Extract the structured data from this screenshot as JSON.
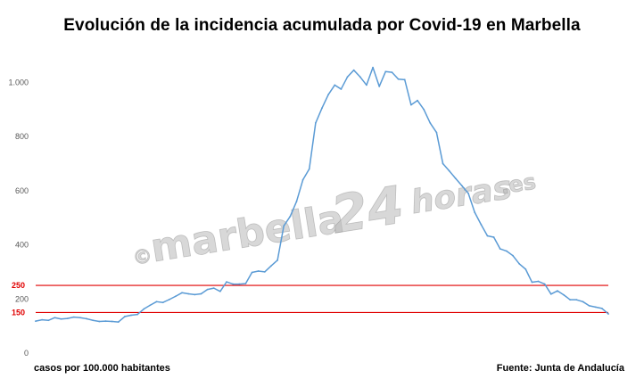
{
  "title": "Evolución de la incidencia acumulada por Covid-19 en Marbella",
  "footer": {
    "left": "casos por 100.000 habitantes",
    "right": "Fuente: Junta de Andalucía"
  },
  "watermark": {
    "copyright": "©",
    "brand": "marbella",
    "number": "24",
    "suffix": "horas",
    "tld": ".es"
  },
  "chart_data": {
    "type": "line",
    "title": "Evolución de la incidencia acumulada por Covid-19 en Marbella",
    "xlabel": "",
    "ylabel": "casos por 100.000 habitantes",
    "ylim": [
      0,
      1100
    ],
    "grid": false,
    "y_ticks": [
      {
        "value": 0,
        "label": "0"
      },
      {
        "value": 200,
        "label": "200"
      },
      {
        "value": 400,
        "label": "400"
      },
      {
        "value": 600,
        "label": "600"
      },
      {
        "value": 800,
        "label": "800"
      },
      {
        "value": 1000,
        "label": "1.000"
      }
    ],
    "reference_lines": [
      {
        "value": 250,
        "label": "250",
        "color": "#e00000"
      },
      {
        "value": 150,
        "label": "150",
        "color": "#e00000"
      }
    ],
    "series": [
      {
        "color": "#5b9bd5",
        "values": [
          118,
          123,
          121,
          131,
          126,
          128,
          133,
          131,
          127,
          121,
          117,
          118,
          117,
          115,
          135,
          140,
          143,
          163,
          177,
          190,
          187,
          198,
          210,
          223,
          219,
          216,
          219,
          235,
          240,
          228,
          263,
          255,
          255,
          257,
          298,
          303,
          300,
          322,
          343,
          470,
          505,
          560,
          640,
          680,
          850,
          905,
          955,
          990,
          975,
          1020,
          1045,
          1020,
          990,
          1055,
          985,
          1040,
          1037,
          1012,
          1010,
          917,
          933,
          900,
          850,
          815,
          700,
          673,
          645,
          618,
          590,
          520,
          475,
          433,
          428,
          385,
          377,
          360,
          330,
          310,
          262,
          265,
          255,
          218,
          230,
          215,
          197,
          197,
          190,
          175,
          170,
          165,
          145
        ]
      }
    ]
  }
}
